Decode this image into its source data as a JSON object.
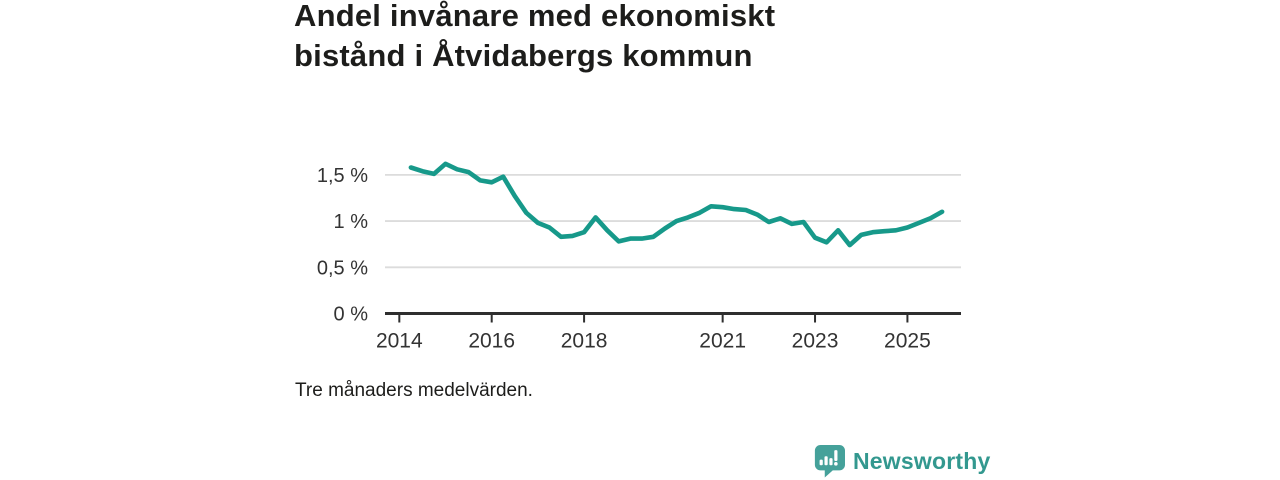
{
  "header": {
    "title": "Andel invånare med ekonomiskt bistånd i Åtvidabergs kommun"
  },
  "caption": "Tre månaders medelvärden.",
  "branding": {
    "wordmark": "Newsworthy",
    "icon": "speech-bubble-bar-chart",
    "icon_color": "#45a19a",
    "text_color": "#33988f"
  },
  "colors": {
    "accent_teal": "#17998a",
    "title_text": "#1d1d1b",
    "axis_text": "#333333",
    "gridline": "#dcdcdc",
    "axis_line": "#2e2e2e",
    "background": "#ffffff"
  },
  "chart_data": {
    "type": "line",
    "title": "Andel invånare med ekonomiskt bistånd i Åtvidabergs kommun",
    "note": "Tre månaders medelvärden.",
    "series": [
      {
        "name": "Andel invånare med ekonomiskt bistånd",
        "color": "#17998a",
        "x": [
          2014.25,
          2014.5,
          2014.75,
          2015.0,
          2015.25,
          2015.5,
          2015.75,
          2016.0,
          2016.25,
          2016.5,
          2016.75,
          2017.0,
          2017.25,
          2017.5,
          2017.75,
          2018.0,
          2018.25,
          2018.5,
          2018.75,
          2019.0,
          2019.25,
          2019.5,
          2019.75,
          2020.0,
          2020.25,
          2020.5,
          2020.75,
          2021.0,
          2021.25,
          2021.5,
          2021.75,
          2022.0,
          2022.25,
          2022.5,
          2022.75,
          2023.0,
          2023.25,
          2023.5,
          2023.75,
          2024.0,
          2024.25,
          2024.5,
          2024.75,
          2025.0,
          2025.25,
          2025.5,
          2025.75
        ],
        "values": [
          1.58,
          1.54,
          1.51,
          1.62,
          1.56,
          1.53,
          1.44,
          1.42,
          1.48,
          1.27,
          1.09,
          0.98,
          0.93,
          0.83,
          0.84,
          0.88,
          1.04,
          0.9,
          0.78,
          0.81,
          0.81,
          0.83,
          0.92,
          1.0,
          1.04,
          1.09,
          1.16,
          1.15,
          1.13,
          1.12,
          1.07,
          0.99,
          1.03,
          0.97,
          0.99,
          0.82,
          0.77,
          0.9,
          0.74,
          0.85,
          0.88,
          0.89,
          0.9,
          0.93,
          0.98,
          1.03,
          1.1
        ]
      }
    ],
    "x_ticks": [
      2014,
      2016,
      2018,
      2021,
      2023,
      2025
    ],
    "x_tick_labels": [
      "2014",
      "2016",
      "2018",
      "2021",
      "2023",
      "2025"
    ],
    "y_ticks": [
      0,
      0.5,
      1,
      1.5
    ],
    "y_tick_labels": [
      "0 %",
      "0,5 %",
      "1 %",
      "1,5 %"
    ],
    "xlim": [
      2013.69,
      2026.16
    ],
    "ylim": [
      0,
      1.715
    ],
    "grid": "horizontal",
    "legend": "none",
    "grid_color": "#dcdcdc",
    "axis_color": "#2e2e2e",
    "tick_label_color": "#333333",
    "line_width": 4.6
  }
}
